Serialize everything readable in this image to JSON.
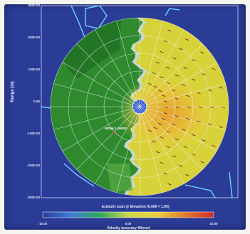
{
  "chart_data": {
    "type": "heatmap",
    "title": "Azimuth scan @ Elevation (0.000 = 1.00)",
    "ylabel": "Range (m)",
    "y_ticks": [
      "3000.00",
      "2000.00",
      "1000.00",
      "0.00",
      "-1000.00",
      "-2000.00",
      "-3000.00"
    ],
    "ylim": [
      -3000,
      3000
    ],
    "max_range_m": 2500,
    "colorbar": {
      "label": "Velocity accuracy filtered",
      "ticks": [
        "-10.00",
        "0.00",
        "10.00"
      ],
      "range": [
        -10,
        10
      ],
      "colors": [
        "#2a3c96",
        "#3b7ed8",
        "#2faa5a",
        "#c9d84a",
        "#e9d23e",
        "#e07a2a",
        "#d02a2a"
      ]
    },
    "target_label": "WD66 1.00000",
    "velocity_field": {
      "approaching_side": "west",
      "approaching_color": "#2f8a2e",
      "receding_side": "east",
      "receding_color": "#d8d23a",
      "core_color": "#e8b23a",
      "boundary_color": "#c8d8c8"
    }
  }
}
